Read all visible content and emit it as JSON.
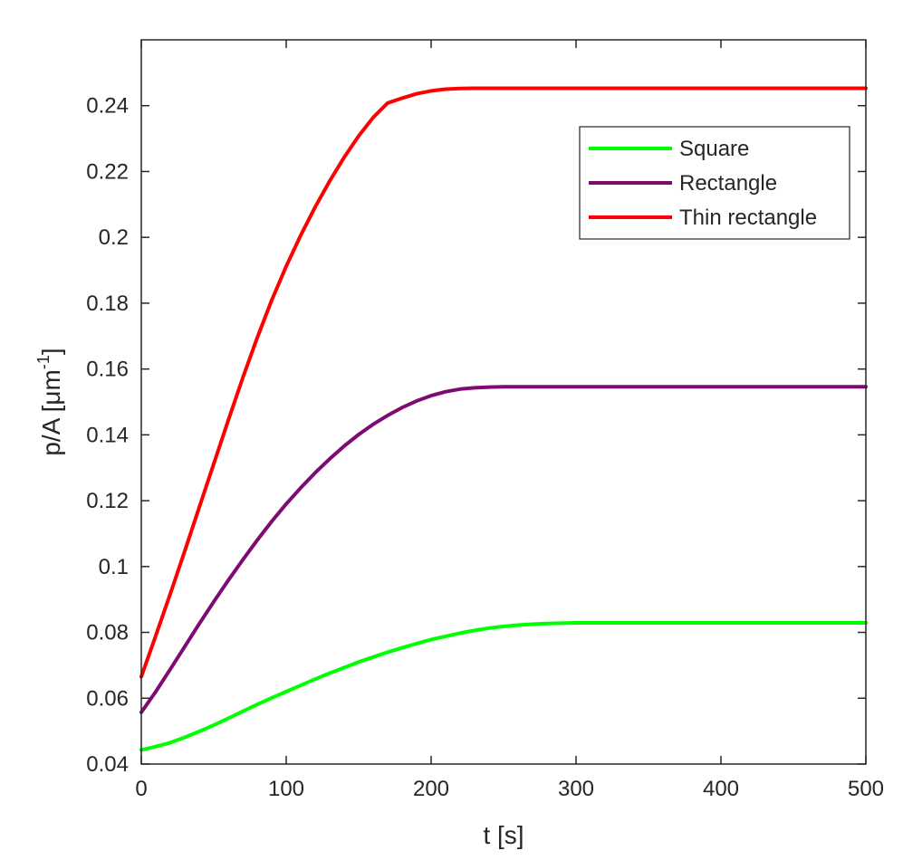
{
  "chart_data": {
    "type": "line",
    "xlabel": "t [s]",
    "ylabel": "p/A [μm",
    "ylabel_sup": "-1",
    "ylabel_close": "]",
    "xlim": [
      0,
      500
    ],
    "ylim": [
      0.04,
      0.26
    ],
    "x_ticks": [
      0,
      100,
      200,
      300,
      400,
      500
    ],
    "x_tick_labels": [
      "0",
      "100",
      "200",
      "300",
      "400",
      "500"
    ],
    "y_ticks": [
      0.04,
      0.06,
      0.08,
      0.1,
      0.12,
      0.14,
      0.16,
      0.18,
      0.2,
      0.22,
      0.24
    ],
    "y_tick_labels": [
      "0.04",
      "0.06",
      "0.08",
      "0.1",
      "0.12",
      "0.14",
      "0.16",
      "0.18",
      "0.2",
      "0.22",
      "0.24"
    ],
    "grid": false,
    "legend_position": "top-right",
    "x": [
      0,
      10,
      20,
      30,
      40,
      50,
      60,
      70,
      80,
      90,
      100,
      110,
      120,
      130,
      140,
      150,
      160,
      170,
      180,
      190,
      200,
      210,
      220,
      230,
      240,
      250,
      260,
      270,
      280,
      290,
      300,
      350,
      400,
      450,
      500
    ],
    "series": [
      {
        "name": "Square",
        "color": "#00ff00",
        "values": [
          0.0443,
          0.0453,
          0.0465,
          0.0481,
          0.0499,
          0.0518,
          0.0539,
          0.056,
          0.0581,
          0.0601,
          0.062,
          0.0639,
          0.0658,
          0.0676,
          0.0693,
          0.071,
          0.0725,
          0.074,
          0.0753,
          0.0766,
          0.0778,
          0.0788,
          0.0798,
          0.0806,
          0.0813,
          0.0818,
          0.0822,
          0.0825,
          0.0827,
          0.0828,
          0.0829,
          0.0829,
          0.0829,
          0.0829,
          0.0829
        ]
      },
      {
        "name": "Rectangle",
        "color": "#7e0a72",
        "values": [
          0.0557,
          0.062,
          0.0688,
          0.0757,
          0.0826,
          0.0893,
          0.0958,
          0.102,
          0.108,
          0.1137,
          0.119,
          0.1239,
          0.1285,
          0.1327,
          0.1366,
          0.1401,
          0.1432,
          0.1459,
          0.1483,
          0.1503,
          0.1519,
          0.1531,
          0.1539,
          0.1543,
          0.1545,
          0.1546,
          0.1546,
          0.1546,
          0.1546,
          0.1546,
          0.1546,
          0.1546,
          0.1546,
          0.1546,
          0.1546
        ]
      },
      {
        "name": "Thin rectangle",
        "color": "#ff0000",
        "values": [
          0.0665,
          0.079,
          0.0917,
          0.1047,
          0.118,
          0.1312,
          0.1444,
          0.1573,
          0.1695,
          0.1809,
          0.1912,
          0.2006,
          0.2092,
          0.2171,
          0.2243,
          0.2308,
          0.2364,
          0.2408,
          0.2423,
          0.2436,
          0.2445,
          0.245,
          0.2452,
          0.2453,
          0.2453,
          0.2453,
          0.2453,
          0.2453,
          0.2453,
          0.2453,
          0.2453,
          0.2453,
          0.2453,
          0.2453,
          0.2453
        ]
      }
    ]
  }
}
